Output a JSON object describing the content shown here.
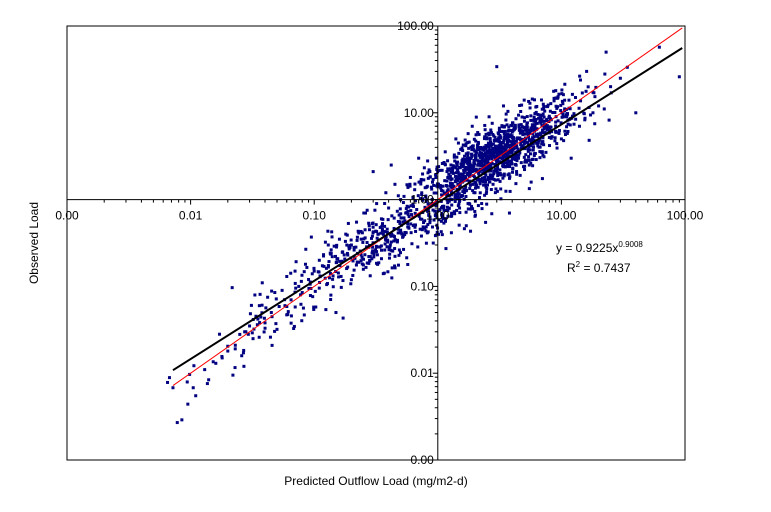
{
  "chart_data": {
    "type": "scatter",
    "title": "",
    "xlabel": "Predicted Outflow Load  (mg/m2-d)",
    "ylabel": "Observed Load",
    "x_scale": "log",
    "y_scale": "log",
    "xlim": [
      0.001,
      100
    ],
    "ylim": [
      0.001,
      100
    ],
    "grid": false,
    "x_ticks": [
      {
        "value": 0.001,
        "label": "0.00"
      },
      {
        "value": 0.01,
        "label": "0.01"
      },
      {
        "value": 0.1,
        "label": "0.10"
      },
      {
        "value": 1,
        "label": "1.00"
      },
      {
        "value": 10,
        "label": "10.00"
      },
      {
        "value": 100,
        "label": "100.00"
      }
    ],
    "y_ticks": [
      {
        "value": 0.001,
        "label": "0.00"
      },
      {
        "value": 0.01,
        "label": "0.01"
      },
      {
        "value": 0.1,
        "label": "0.10"
      },
      {
        "value": 1,
        "label": "1.00"
      },
      {
        "value": 10,
        "label": "10.00"
      },
      {
        "value": 100,
        "label": "100.00"
      }
    ],
    "series": [
      {
        "marker_color": "#000080",
        "points": [
          [
            0.0072,
            0.0068
          ],
          [
            0.0078,
            0.0027
          ],
          [
            0.0085,
            0.0029
          ],
          [
            0.0095,
            0.0044
          ],
          [
            0.0105,
            0.0068
          ],
          [
            0.011,
            0.0055
          ],
          [
            0.013,
            0.011
          ],
          [
            0.014,
            0.0084
          ],
          [
            0.016,
            0.013
          ],
          [
            0.018,
            0.015
          ],
          [
            0.02,
            0.018
          ],
          [
            0.022,
            0.0095
          ],
          [
            0.023,
            0.021
          ],
          [
            0.025,
            0.028
          ],
          [
            0.027,
            0.012
          ],
          [
            0.028,
            0.03
          ],
          [
            0.03,
            0.035
          ],
          [
            0.032,
            0.025
          ],
          [
            0.035,
            0.042
          ],
          [
            0.036,
            0.06
          ],
          [
            0.038,
            0.11
          ],
          [
            0.04,
            0.038
          ],
          [
            0.042,
            0.075
          ],
          [
            0.045,
            0.05
          ],
          [
            0.048,
            0.085
          ],
          [
            0.05,
            0.032
          ],
          [
            0.055,
            0.09
          ],
          [
            0.058,
            0.06
          ],
          [
            0.06,
            0.13
          ],
          [
            0.065,
            0.07
          ],
          [
            0.07,
            0.15
          ],
          [
            0.075,
            0.1
          ],
          [
            0.08,
            0.085
          ],
          [
            0.085,
            0.18
          ],
          [
            0.09,
            0.12
          ],
          [
            0.1,
            0.15
          ],
          [
            0.11,
            0.2
          ],
          [
            0.12,
            0.17
          ],
          [
            0.13,
            0.3
          ],
          [
            0.14,
            0.22
          ],
          [
            0.15,
            0.05
          ],
          [
            0.16,
            0.35
          ],
          [
            0.17,
            0.25
          ],
          [
            0.18,
            0.4
          ],
          [
            0.2,
            0.3
          ],
          [
            0.22,
            0.55
          ],
          [
            0.24,
            0.35
          ],
          [
            0.26,
            0.7
          ],
          [
            0.28,
            0.45
          ],
          [
            0.3,
            2.1
          ],
          [
            0.32,
            0.9
          ],
          [
            0.35,
            0.6
          ],
          [
            0.38,
            1.2
          ],
          [
            0.4,
            0.8
          ],
          [
            0.42,
            2.5
          ],
          [
            0.45,
            1.5
          ],
          [
            0.5,
            1.0
          ],
          [
            0.55,
            0.7
          ],
          [
            0.6,
            1.8
          ],
          [
            0.65,
            1.3
          ],
          [
            0.7,
            3.0
          ],
          [
            0.75,
            0.45
          ],
          [
            0.8,
            1.1
          ],
          [
            0.85,
            2.2
          ],
          [
            0.9,
            0.9
          ],
          [
            1.0,
            1.4
          ],
          [
            1.1,
            0.6
          ],
          [
            1.2,
            2.8
          ],
          [
            1.3,
            1.0
          ],
          [
            1.4,
            5.0
          ],
          [
            1.5,
            0.8
          ],
          [
            1.6,
            1.9
          ],
          [
            1.7,
            0.5
          ],
          [
            1.8,
            2.4
          ],
          [
            1.9,
            7.0
          ],
          [
            2.0,
            1.2
          ],
          [
            2.2,
            3.5
          ],
          [
            2.4,
            1.8
          ],
          [
            2.6,
            9.0
          ],
          [
            2.8,
            1.5
          ],
          [
            3.0,
            34.0
          ],
          [
            3.2,
            2.0
          ],
          [
            3.4,
            12.0
          ],
          [
            3.6,
            4.0
          ],
          [
            3.8,
            0.7
          ],
          [
            4.0,
            6.0
          ],
          [
            4.5,
            3.0
          ],
          [
            5.0,
            14.0
          ],
          [
            5.5,
            2.5
          ],
          [
            6.0,
            8.0
          ],
          [
            6.5,
            4.5
          ],
          [
            7.0,
            11.0
          ],
          [
            7.5,
            3.5
          ],
          [
            8.0,
            6.5
          ],
          [
            9.0,
            18.0
          ],
          [
            10.0,
            5.0
          ],
          [
            11.0,
            9.0
          ],
          [
            12.0,
            3.0
          ],
          [
            13.0,
            15.0
          ],
          [
            14.0,
            7.0
          ],
          [
            16.0,
            30.0
          ],
          [
            18.0,
            10.0
          ],
          [
            20.0,
            12.0
          ],
          [
            23.0,
            50.0
          ],
          [
            25.0,
            20.0
          ],
          [
            30.0,
            25.0
          ],
          [
            40.0,
            10.0
          ],
          [
            62.0,
            57.0
          ],
          [
            90.0,
            26.0
          ]
        ],
        "dense_clouds": [
          {
            "x_log_center": 0.46,
            "y_log_center": 0.5,
            "x_log_spread": 0.34,
            "y_log_spread": 0.33,
            "count": 1150
          },
          {
            "x_log_center": -0.4,
            "y_log_center": -0.45,
            "x_log_spread": 0.42,
            "y_log_spread": 0.3,
            "count": 330
          },
          {
            "x_log_center": -1.35,
            "y_log_center": -1.45,
            "x_log_spread": 0.35,
            "y_log_spread": 0.3,
            "count": 80
          }
        ]
      }
    ],
    "fit_line": {
      "name": "",
      "color": "#000000",
      "coef": 0.9225,
      "exponent": 0.9008,
      "x_range": [
        0.0072,
        95
      ]
    },
    "identity_line": {
      "color": "#ff0000",
      "x_range": [
        0.0072,
        95
      ]
    },
    "annotation": {
      "equation_prefix": "y = 0.9225x",
      "equation_exponent": "0.9008",
      "r2_prefix": "R",
      "r2_superscript": "2",
      "r2_suffix": " = 0.7437"
    }
  }
}
